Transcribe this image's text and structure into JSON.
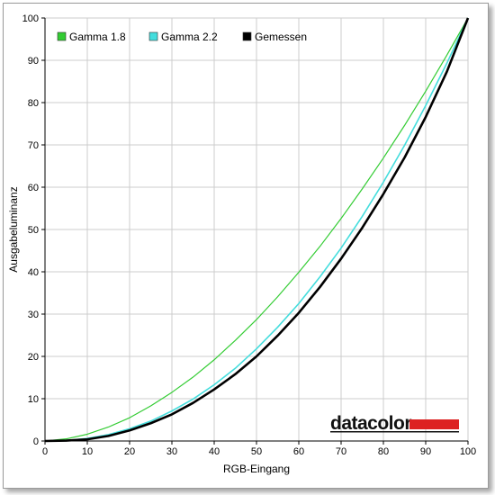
{
  "chart_data": {
    "type": "line",
    "xlabel": "RGB-Eingang",
    "ylabel": "Ausgabeluminanz",
    "xlim": [
      0,
      100
    ],
    "ylim": [
      0,
      100
    ],
    "x_ticks": [
      0,
      10,
      20,
      30,
      40,
      50,
      60,
      70,
      80,
      90,
      100
    ],
    "y_ticks": [
      0,
      10,
      20,
      30,
      40,
      50,
      60,
      70,
      80,
      90,
      100
    ],
    "grid": true,
    "legend_position": "top-left",
    "series": [
      {
        "name": "Gamma 1.8",
        "color": "#33cc33",
        "x": [
          0,
          5,
          10,
          15,
          20,
          25,
          30,
          35,
          40,
          45,
          50,
          55,
          60,
          65,
          70,
          75,
          80,
          85,
          90,
          95,
          100
        ],
        "y": [
          0,
          0.5,
          1.6,
          3.3,
          5.5,
          8.3,
          11.5,
          15.1,
          19.2,
          23.8,
          28.7,
          34.1,
          39.9,
          46.0,
          52.6,
          59.6,
          66.9,
          74.6,
          82.7,
          91.2,
          100
        ]
      },
      {
        "name": "Gamma 2.2",
        "color": "#44dddd",
        "x": [
          0,
          5,
          10,
          15,
          20,
          25,
          30,
          35,
          40,
          45,
          50,
          55,
          60,
          65,
          70,
          75,
          80,
          85,
          90,
          95,
          100
        ],
        "y": [
          0,
          0.1,
          0.6,
          1.5,
          2.9,
          4.7,
          7.1,
          9.9,
          13.3,
          17.2,
          21.8,
          26.9,
          32.5,
          38.8,
          45.6,
          53.1,
          61.2,
          69.9,
          79.3,
          89.3,
          100
        ]
      },
      {
        "name": "Gemessen",
        "color": "#000000",
        "x": [
          0,
          5,
          10,
          15,
          20,
          25,
          30,
          35,
          40,
          45,
          50,
          55,
          60,
          65,
          70,
          75,
          80,
          85,
          90,
          95,
          100
        ],
        "y": [
          0,
          0.1,
          0.4,
          1.2,
          2.5,
          4.2,
          6.3,
          9.0,
          12.2,
          15.8,
          20.0,
          24.9,
          30.3,
          36.4,
          43.1,
          50.4,
          58.4,
          67.0,
          76.6,
          87.3,
          100
        ]
      }
    ]
  },
  "branding": {
    "logo_text": "datacolor",
    "logo_bar_color": "#dd2222"
  }
}
